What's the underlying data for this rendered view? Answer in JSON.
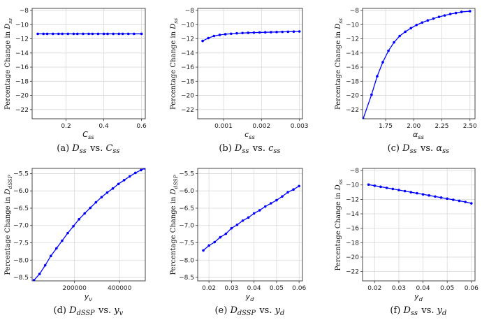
{
  "line_color": "#0000ff",
  "chart_data": [
    {
      "type": "line",
      "caption": "(a) D_ss vs. C_ss",
      "xlabel": "C_ss",
      "ylabel": "Percentage Change in D_ss",
      "xlim": [
        0.02,
        0.62
      ],
      "ylim": [
        -23.3,
        -7.7
      ],
      "xticks": [
        {
          "v": 0.2,
          "label": "0.2"
        },
        {
          "v": 0.4,
          "label": "0.4"
        },
        {
          "v": 0.6,
          "label": "0.6"
        }
      ],
      "yticks": [
        {
          "v": -8,
          "label": "−8"
        },
        {
          "v": -10,
          "label": "−10"
        },
        {
          "v": -12,
          "label": "−12"
        },
        {
          "v": -14,
          "label": "−14"
        },
        {
          "v": -16,
          "label": "−16"
        },
        {
          "v": -18,
          "label": "−18"
        },
        {
          "v": -20,
          "label": "−20"
        },
        {
          "v": -22,
          "label": "−22"
        }
      ],
      "grid": true,
      "markers": true,
      "x": [
        0.05,
        0.08,
        0.1,
        0.13,
        0.16,
        0.18,
        0.21,
        0.24,
        0.26,
        0.29,
        0.32,
        0.34,
        0.37,
        0.4,
        0.42,
        0.45,
        0.48,
        0.5,
        0.53,
        0.56,
        0.6
      ],
      "y": [
        -11.3,
        -11.3,
        -11.3,
        -11.3,
        -11.3,
        -11.3,
        -11.3,
        -11.3,
        -11.3,
        -11.3,
        -11.3,
        -11.3,
        -11.3,
        -11.3,
        -11.3,
        -11.3,
        -11.3,
        -11.3,
        -11.3,
        -11.3,
        -11.3
      ]
    },
    {
      "type": "line",
      "caption": "(b) D_ss vs. c_ss",
      "xlabel": "c_ss",
      "ylabel": "Percentage Change in D_ss",
      "xlim": [
        0.00032,
        0.00308
      ],
      "ylim": [
        -23.3,
        -7.7
      ],
      "xticks": [
        {
          "v": 0.001,
          "label": "0.001"
        },
        {
          "v": 0.002,
          "label": "0.002"
        },
        {
          "v": 0.003,
          "label": "0.003"
        }
      ],
      "yticks": [
        {
          "v": -8,
          "label": "−8"
        },
        {
          "v": -10,
          "label": "−10"
        },
        {
          "v": -12,
          "label": "−12"
        },
        {
          "v": -14,
          "label": "−14"
        },
        {
          "v": -16,
          "label": "−16"
        },
        {
          "v": -18,
          "label": "−18"
        },
        {
          "v": -20,
          "label": "−20"
        },
        {
          "v": -22,
          "label": "−22"
        }
      ],
      "grid": true,
      "markers": true,
      "x": [
        0.00045,
        0.0006,
        0.00075,
        0.0009,
        0.00105,
        0.0012,
        0.00135,
        0.0015,
        0.00165,
        0.0018,
        0.00195,
        0.0021,
        0.00225,
        0.0024,
        0.00255,
        0.0027,
        0.00285,
        0.003
      ],
      "y": [
        -12.3,
        -11.9,
        -11.6,
        -11.45,
        -11.35,
        -11.28,
        -11.22,
        -11.18,
        -11.15,
        -11.12,
        -11.1,
        -11.08,
        -11.06,
        -11.04,
        -11.02,
        -11.0,
        -10.98,
        -10.96
      ]
    },
    {
      "type": "line",
      "caption": "(c) D_ss vs. α_ss",
      "xlabel": "α_ss",
      "ylabel": "Percentage Change in D_ss",
      "xlim": [
        1.545,
        2.545
      ],
      "ylim": [
        -23.3,
        -7.7
      ],
      "xticks": [
        {
          "v": 1.75,
          "label": "1.75"
        },
        {
          "v": 2.0,
          "label": "2.00"
        },
        {
          "v": 2.25,
          "label": "2.25"
        },
        {
          "v": 2.5,
          "label": "2.50"
        }
      ],
      "yticks": [
        {
          "v": -8,
          "label": "−8"
        },
        {
          "v": -10,
          "label": "−10"
        },
        {
          "v": -12,
          "label": "−12"
        },
        {
          "v": -14,
          "label": "−14"
        },
        {
          "v": -16,
          "label": "−16"
        },
        {
          "v": -18,
          "label": "−18"
        },
        {
          "v": -20,
          "label": "−20"
        },
        {
          "v": -22,
          "label": "−22"
        }
      ],
      "grid": true,
      "markers": true,
      "x": [
        1.55,
        1.625,
        1.675,
        1.725,
        1.775,
        1.825,
        1.875,
        1.925,
        1.975,
        2.025,
        2.075,
        2.125,
        2.175,
        2.225,
        2.275,
        2.325,
        2.375,
        2.425,
        2.5
      ],
      "y": [
        -23.3,
        -19.9,
        -17.3,
        -15.3,
        -13.7,
        -12.5,
        -11.6,
        -11.0,
        -10.5,
        -10.05,
        -9.7,
        -9.4,
        -9.15,
        -8.9,
        -8.7,
        -8.5,
        -8.35,
        -8.2,
        -8.1
      ]
    },
    {
      "type": "line",
      "caption": "(d) D_dSSP vs. y_v",
      "xlabel": "y_v",
      "ylabel": "Percentage Change in D_dSSP",
      "xlim": [
        12000,
        514000
      ],
      "ylim": [
        -8.6,
        -5.35
      ],
      "xticks": [
        {
          "v": 200000,
          "label": "200000"
        },
        {
          "v": 400000,
          "label": "400000"
        }
      ],
      "yticks": [
        {
          "v": -5.5,
          "label": "−5.5"
        },
        {
          "v": -6.0,
          "label": "−6.0"
        },
        {
          "v": -6.5,
          "label": "−6.5"
        },
        {
          "v": -7.0,
          "label": "−7.0"
        },
        {
          "v": -7.5,
          "label": "−7.5"
        },
        {
          "v": -8.0,
          "label": "−8.0"
        },
        {
          "v": -8.5,
          "label": "−8.5"
        }
      ],
      "grid": true,
      "markers": true,
      "x": [
        20000,
        45000,
        70000,
        95000,
        120000,
        145000,
        170000,
        195000,
        220000,
        245000,
        270000,
        295000,
        320000,
        345000,
        370000,
        395000,
        420000,
        445000,
        470000,
        495000,
        510000
      ],
      "y": [
        -8.58,
        -8.4,
        -8.15,
        -7.88,
        -7.66,
        -7.44,
        -7.22,
        -7.02,
        -6.82,
        -6.65,
        -6.49,
        -6.33,
        -6.18,
        -6.05,
        -5.93,
        -5.8,
        -5.69,
        -5.58,
        -5.48,
        -5.4,
        -5.35
      ]
    },
    {
      "type": "line",
      "caption": "(e) D_dSSP vs. y_d",
      "xlabel": "y_d",
      "ylabel": "Percentage Change in D_dSSP",
      "xlim": [
        0.015,
        0.0615
      ],
      "ylim": [
        -8.6,
        -5.35
      ],
      "xticks": [
        {
          "v": 0.02,
          "label": "0.02"
        },
        {
          "v": 0.03,
          "label": "0.03"
        },
        {
          "v": 0.04,
          "label": "0.04"
        },
        {
          "v": 0.05,
          "label": "0.05"
        },
        {
          "v": 0.06,
          "label": "0.06"
        }
      ],
      "yticks": [
        {
          "v": -5.5,
          "label": "−5.5"
        },
        {
          "v": -6.0,
          "label": "−6.0"
        },
        {
          "v": -6.5,
          "label": "−6.5"
        },
        {
          "v": -7.0,
          "label": "−7.0"
        },
        {
          "v": -7.5,
          "label": "−7.5"
        },
        {
          "v": -8.0,
          "label": "−8.0"
        },
        {
          "v": -8.5,
          "label": "−8.5"
        }
      ],
      "grid": true,
      "markers": true,
      "x": [
        0.0175,
        0.02,
        0.0225,
        0.025,
        0.0275,
        0.03,
        0.0325,
        0.035,
        0.0375,
        0.04,
        0.0425,
        0.045,
        0.0475,
        0.05,
        0.0525,
        0.055,
        0.0575,
        0.06
      ],
      "y": [
        -7.72,
        -7.58,
        -7.48,
        -7.34,
        -7.24,
        -7.08,
        -6.98,
        -6.86,
        -6.77,
        -6.65,
        -6.56,
        -6.45,
        -6.36,
        -6.27,
        -6.16,
        -6.04,
        -5.96,
        -5.86
      ]
    },
    {
      "type": "line",
      "caption": "(f) D_ss vs. y_d",
      "xlabel": "y_d",
      "ylabel": "Percentage Change in D_ss",
      "xlim": [
        0.015,
        0.0615
      ],
      "ylim": [
        -23.3,
        -7.7
      ],
      "xticks": [
        {
          "v": 0.02,
          "label": "0.02"
        },
        {
          "v": 0.03,
          "label": "0.03"
        },
        {
          "v": 0.04,
          "label": "0.04"
        },
        {
          "v": 0.05,
          "label": "0.05"
        },
        {
          "v": 0.06,
          "label": "0.06"
        }
      ],
      "yticks": [
        {
          "v": -8,
          "label": "−8"
        },
        {
          "v": -10,
          "label": "−10"
        },
        {
          "v": -12,
          "label": "−12"
        },
        {
          "v": -14,
          "label": "−14"
        },
        {
          "v": -16,
          "label": "−16"
        },
        {
          "v": -18,
          "label": "−18"
        },
        {
          "v": -20,
          "label": "−20"
        },
        {
          "v": -22,
          "label": "−22"
        }
      ],
      "grid": true,
      "markers": true,
      "x": [
        0.0175,
        0.02,
        0.0225,
        0.025,
        0.0275,
        0.03,
        0.0325,
        0.035,
        0.0375,
        0.04,
        0.0425,
        0.045,
        0.0475,
        0.05,
        0.0525,
        0.055,
        0.0575,
        0.06
      ],
      "y": [
        -9.95,
        -10.1,
        -10.25,
        -10.4,
        -10.55,
        -10.7,
        -10.85,
        -11.0,
        -11.15,
        -11.3,
        -11.45,
        -11.6,
        -11.75,
        -11.9,
        -12.05,
        -12.2,
        -12.35,
        -12.55
      ]
    }
  ]
}
